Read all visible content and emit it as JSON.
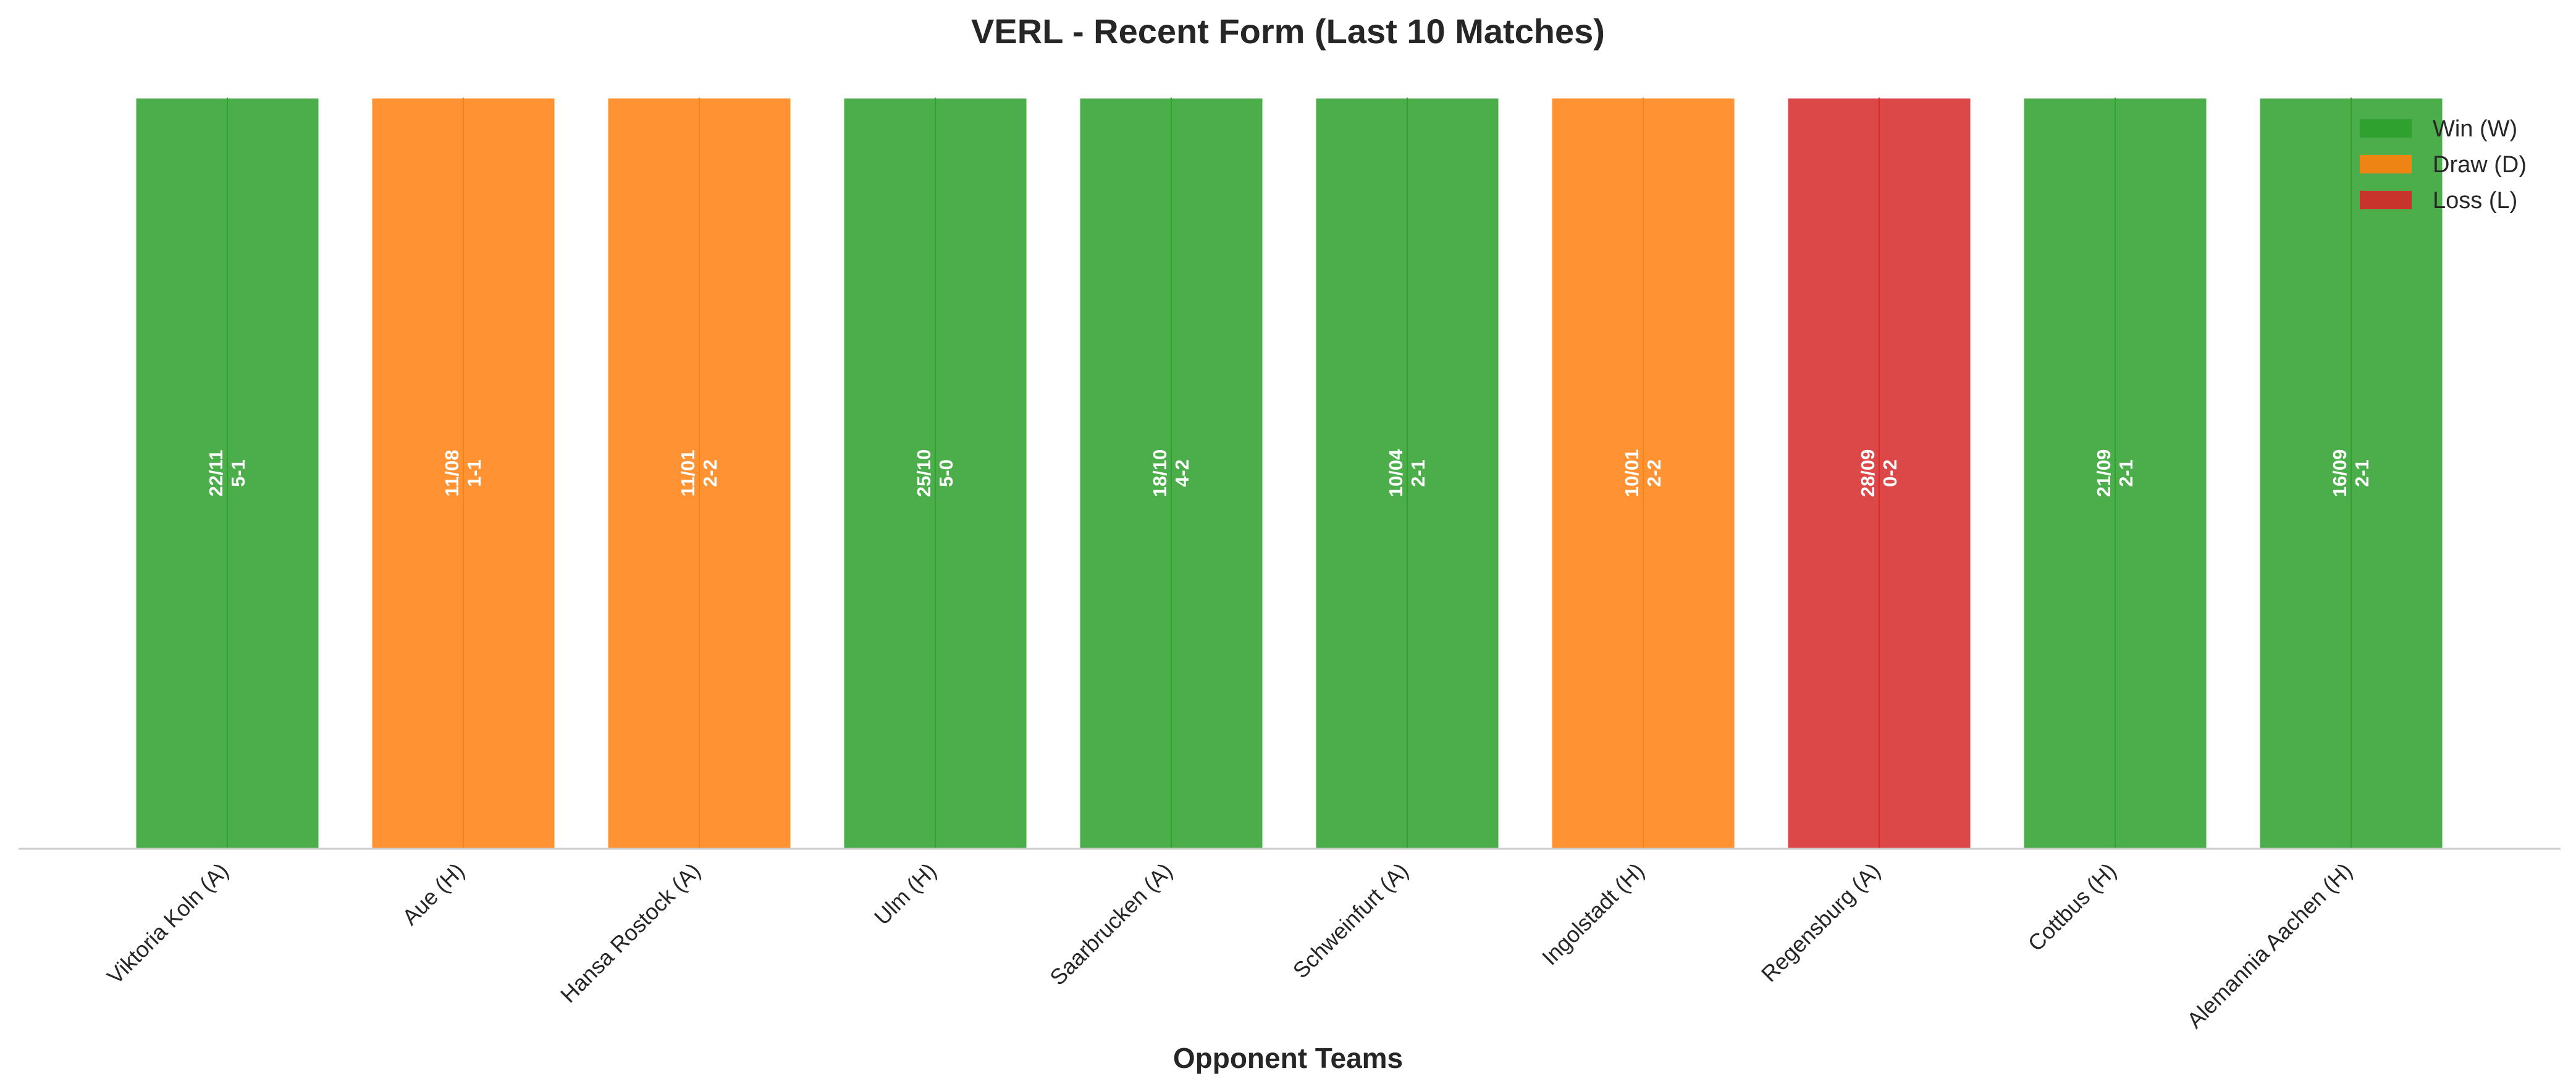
{
  "chart_data": {
    "type": "bar",
    "title": "VERL - Recent Form (Last 10 Matches)",
    "xlabel": "Opponent Teams",
    "ylabel": "",
    "ylim": [
      0,
      1
    ],
    "grid": false,
    "legend_position": "top-right",
    "categories": [
      "Viktoria Koln (A)",
      "Aue (H)",
      "Hansa Rostock (A)",
      "Ulm (H)",
      "Saarbrucken (A)",
      "Schweinfurt (A)",
      "Ingolstadt (H)",
      "Regensburg (A)",
      "Cottbus (H)",
      "Alemannia Aachen (H)"
    ],
    "values": [
      1,
      1,
      1,
      1,
      1,
      1,
      1,
      1,
      1,
      1
    ],
    "results": [
      "W",
      "D",
      "D",
      "W",
      "W",
      "W",
      "D",
      "L",
      "W",
      "W"
    ],
    "dates": [
      "22/11",
      "11/08",
      "11/01",
      "25/10",
      "18/10",
      "10/04",
      "10/01",
      "28/09",
      "21/09",
      "16/09"
    ],
    "scores": [
      "5-1",
      "1-1",
      "2-2",
      "5-0",
      "4-2",
      "2-1",
      "2-2",
      "0-2",
      "2-1",
      "2-1"
    ],
    "legend": [
      {
        "key": "W",
        "label": "Win (W)",
        "color": "#2ca02c"
      },
      {
        "key": "D",
        "label": "Draw (D)",
        "color": "#ff7f0e"
      },
      {
        "key": "L",
        "label": "Loss (L)",
        "color": "#d62728"
      }
    ]
  }
}
